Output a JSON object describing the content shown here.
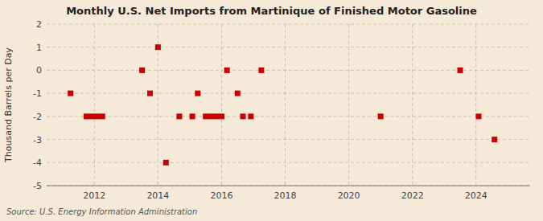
{
  "chart_data": {
    "type": "scatter",
    "title": "Monthly U.S. Net Imports from Martinique of Finished Motor Gasoline",
    "ylabel": "Thousand Barrels per Day",
    "annotations": [
      "Source: U.S. Energy Information Administration"
    ],
    "x": [
      2011.25,
      2011.75,
      2011.92,
      2012.08,
      2012.25,
      2013.5,
      2013.75,
      2014.0,
      2014.25,
      2014.67,
      2015.08,
      2015.25,
      2015.5,
      2015.67,
      2015.83,
      2016.0,
      2016.17,
      2016.5,
      2016.67,
      2016.92,
      2017.25,
      2021.0,
      2023.5,
      2024.08,
      2024.58
    ],
    "values": [
      -1,
      -2,
      -2,
      -2,
      -2,
      0,
      -1,
      1,
      -4,
      -2,
      -2,
      -1,
      -2,
      -2,
      -2,
      -2,
      0,
      -1,
      -2,
      -2,
      0,
      -2,
      0,
      -2,
      -3
    ],
    "color": "#cc0000",
    "marker": "square",
    "xlim": [
      2010.5,
      2025.7
    ],
    "xticks": [
      2012,
      2014,
      2016,
      2018,
      2020,
      2022,
      2024
    ],
    "ylim": [
      -5,
      2
    ],
    "yticks": [
      -5,
      -4,
      -3,
      -2,
      -1,
      0,
      1,
      2
    ],
    "grid": true
  }
}
